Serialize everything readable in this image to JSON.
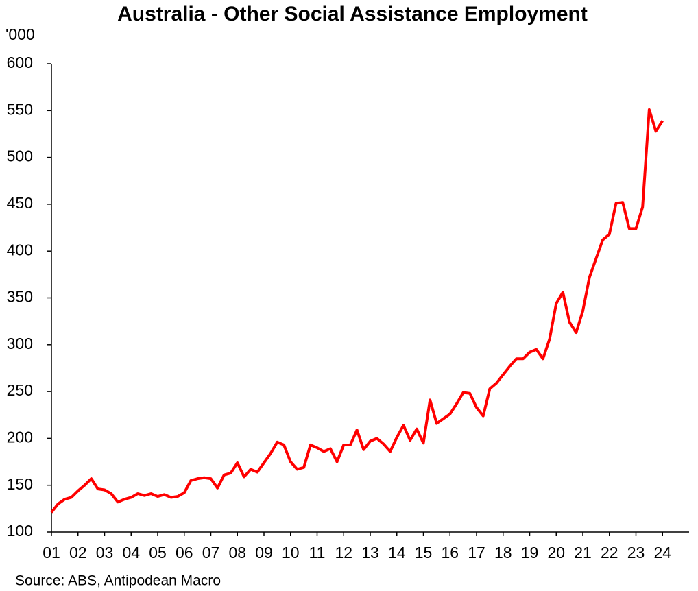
{
  "chart_data": {
    "type": "line",
    "title": "Australia - Other Social Assistance Employment",
    "y_label": "'000",
    "source": "Source: ABS, Antipodean Macro",
    "x": [
      2001,
      2001.25,
      2001.5,
      2001.75,
      2002,
      2002.25,
      2002.5,
      2002.75,
      2003,
      2003.25,
      2003.5,
      2003.75,
      2004,
      2004.25,
      2004.5,
      2004.75,
      2005,
      2005.25,
      2005.5,
      2005.75,
      2006,
      2006.25,
      2006.5,
      2006.75,
      2007,
      2007.25,
      2007.5,
      2007.75,
      2008,
      2008.25,
      2008.5,
      2008.75,
      2009,
      2009.25,
      2009.5,
      2009.75,
      2010,
      2010.25,
      2010.5,
      2010.75,
      2011,
      2011.25,
      2011.5,
      2011.75,
      2012,
      2012.25,
      2012.5,
      2012.75,
      2013,
      2013.25,
      2013.5,
      2013.75,
      2014,
      2014.25,
      2014.5,
      2014.75,
      2015,
      2015.25,
      2015.5,
      2015.75,
      2016,
      2016.25,
      2016.5,
      2016.75,
      2017,
      2017.25,
      2017.5,
      2017.75,
      2018,
      2018.25,
      2018.5,
      2018.75,
      2019,
      2019.25,
      2019.5,
      2019.75,
      2020,
      2020.25,
      2020.5,
      2020.75,
      2021,
      2021.25,
      2021.5,
      2021.75,
      2022,
      2022.25,
      2022.5,
      2022.75,
      2023,
      2023.25,
      2023.5,
      2023.75,
      2024
    ],
    "series": [
      {
        "name": "Other Social Assistance Employment",
        "color": "#ff0000",
        "values": [
          121,
          130,
          135,
          137,
          144,
          150,
          157,
          146,
          145,
          141,
          132,
          135,
          137,
          141,
          139,
          141,
          138,
          140,
          137,
          138,
          142,
          155,
          157,
          158,
          157,
          147,
          161,
          163,
          174,
          159,
          167,
          164,
          174,
          184,
          196,
          193,
          175,
          167,
          169,
          193,
          190,
          186,
          189,
          175,
          193,
          193,
          209,
          188,
          197,
          200,
          194,
          186,
          201,
          214,
          198,
          210,
          195,
          241,
          216,
          221,
          226,
          237,
          249,
          248,
          233,
          224,
          253,
          259,
          268,
          277,
          285,
          285,
          292,
          295,
          285,
          306,
          344,
          356,
          324,
          313,
          336,
          372,
          392,
          412,
          418,
          451,
          452,
          424,
          424,
          447,
          551,
          528,
          539
        ]
      }
    ],
    "xlim": [
      2001,
      2025
    ],
    "xticks": [
      {
        "value": 2001,
        "label": "01"
      },
      {
        "value": 2002,
        "label": "02"
      },
      {
        "value": 2003,
        "label": "03"
      },
      {
        "value": 2004,
        "label": "04"
      },
      {
        "value": 2005,
        "label": "05"
      },
      {
        "value": 2006,
        "label": "06"
      },
      {
        "value": 2007,
        "label": "07"
      },
      {
        "value": 2008,
        "label": "08"
      },
      {
        "value": 2009,
        "label": "09"
      },
      {
        "value": 2010,
        "label": "10"
      },
      {
        "value": 2011,
        "label": "11"
      },
      {
        "value": 2012,
        "label": "12"
      },
      {
        "value": 2013,
        "label": "13"
      },
      {
        "value": 2014,
        "label": "14"
      },
      {
        "value": 2015,
        "label": "15"
      },
      {
        "value": 2016,
        "label": "16"
      },
      {
        "value": 2017,
        "label": "17"
      },
      {
        "value": 2018,
        "label": "18"
      },
      {
        "value": 2019,
        "label": "19"
      },
      {
        "value": 2020,
        "label": "20"
      },
      {
        "value": 2021,
        "label": "21"
      },
      {
        "value": 2022,
        "label": "22"
      },
      {
        "value": 2023,
        "label": "23"
      },
      {
        "value": 2024,
        "label": "24"
      }
    ],
    "ylim": [
      100,
      600
    ],
    "yticks": [
      100,
      150,
      200,
      250,
      300,
      350,
      400,
      450,
      500,
      550,
      600
    ],
    "grid": false
  }
}
